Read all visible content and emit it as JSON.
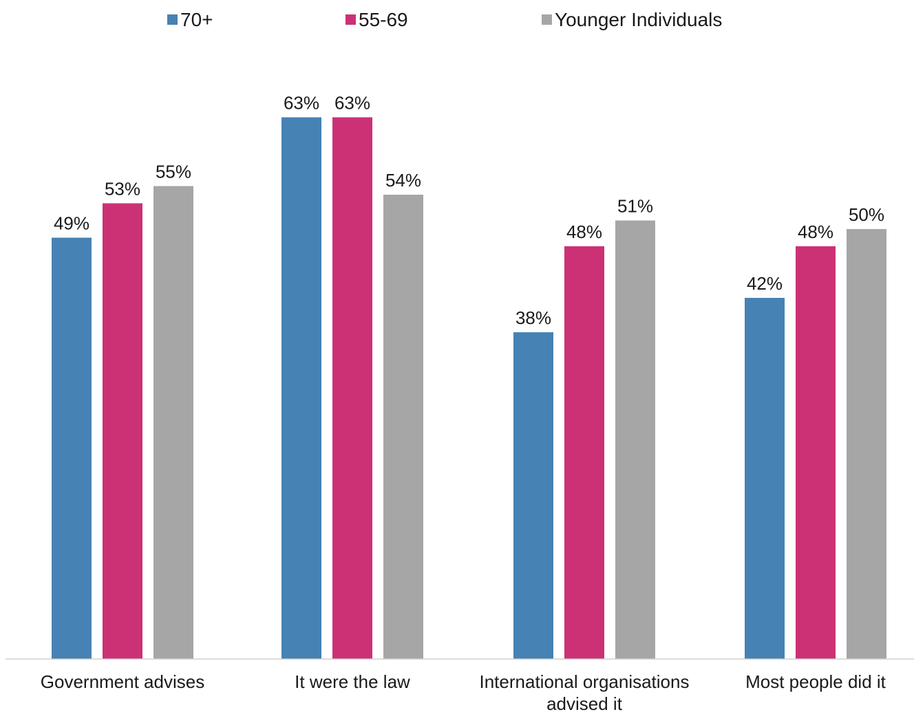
{
  "chart_data": {
    "type": "bar",
    "title": "",
    "xlabel": "",
    "ylabel": "",
    "ylim": [
      0,
      70
    ],
    "grid": false,
    "legend_position": "top",
    "categories": [
      "Government advises",
      "It were the law",
      "International organisations advised it",
      "Most people did it"
    ],
    "category_label_lines": [
      [
        "Government advises"
      ],
      [
        "It were the law"
      ],
      [
        "International organisations",
        "advised it"
      ],
      [
        "Most people did it"
      ]
    ],
    "series": [
      {
        "name": "70+",
        "color": "#4682b4",
        "values": [
          49,
          63,
          38,
          42
        ],
        "labels": [
          "49%",
          "63%",
          "38%",
          "42%"
        ]
      },
      {
        "name": "55-69",
        "color": "#cc3176",
        "values": [
          53,
          63,
          48,
          48
        ],
        "labels": [
          "53%",
          "63%",
          "48%",
          "48%"
        ]
      },
      {
        "name": "Younger Individuals",
        "color": "#a6a6a6",
        "values": [
          55,
          54,
          51,
          50
        ],
        "labels": [
          "55%",
          "54%",
          "51%",
          "50%"
        ]
      }
    ]
  }
}
